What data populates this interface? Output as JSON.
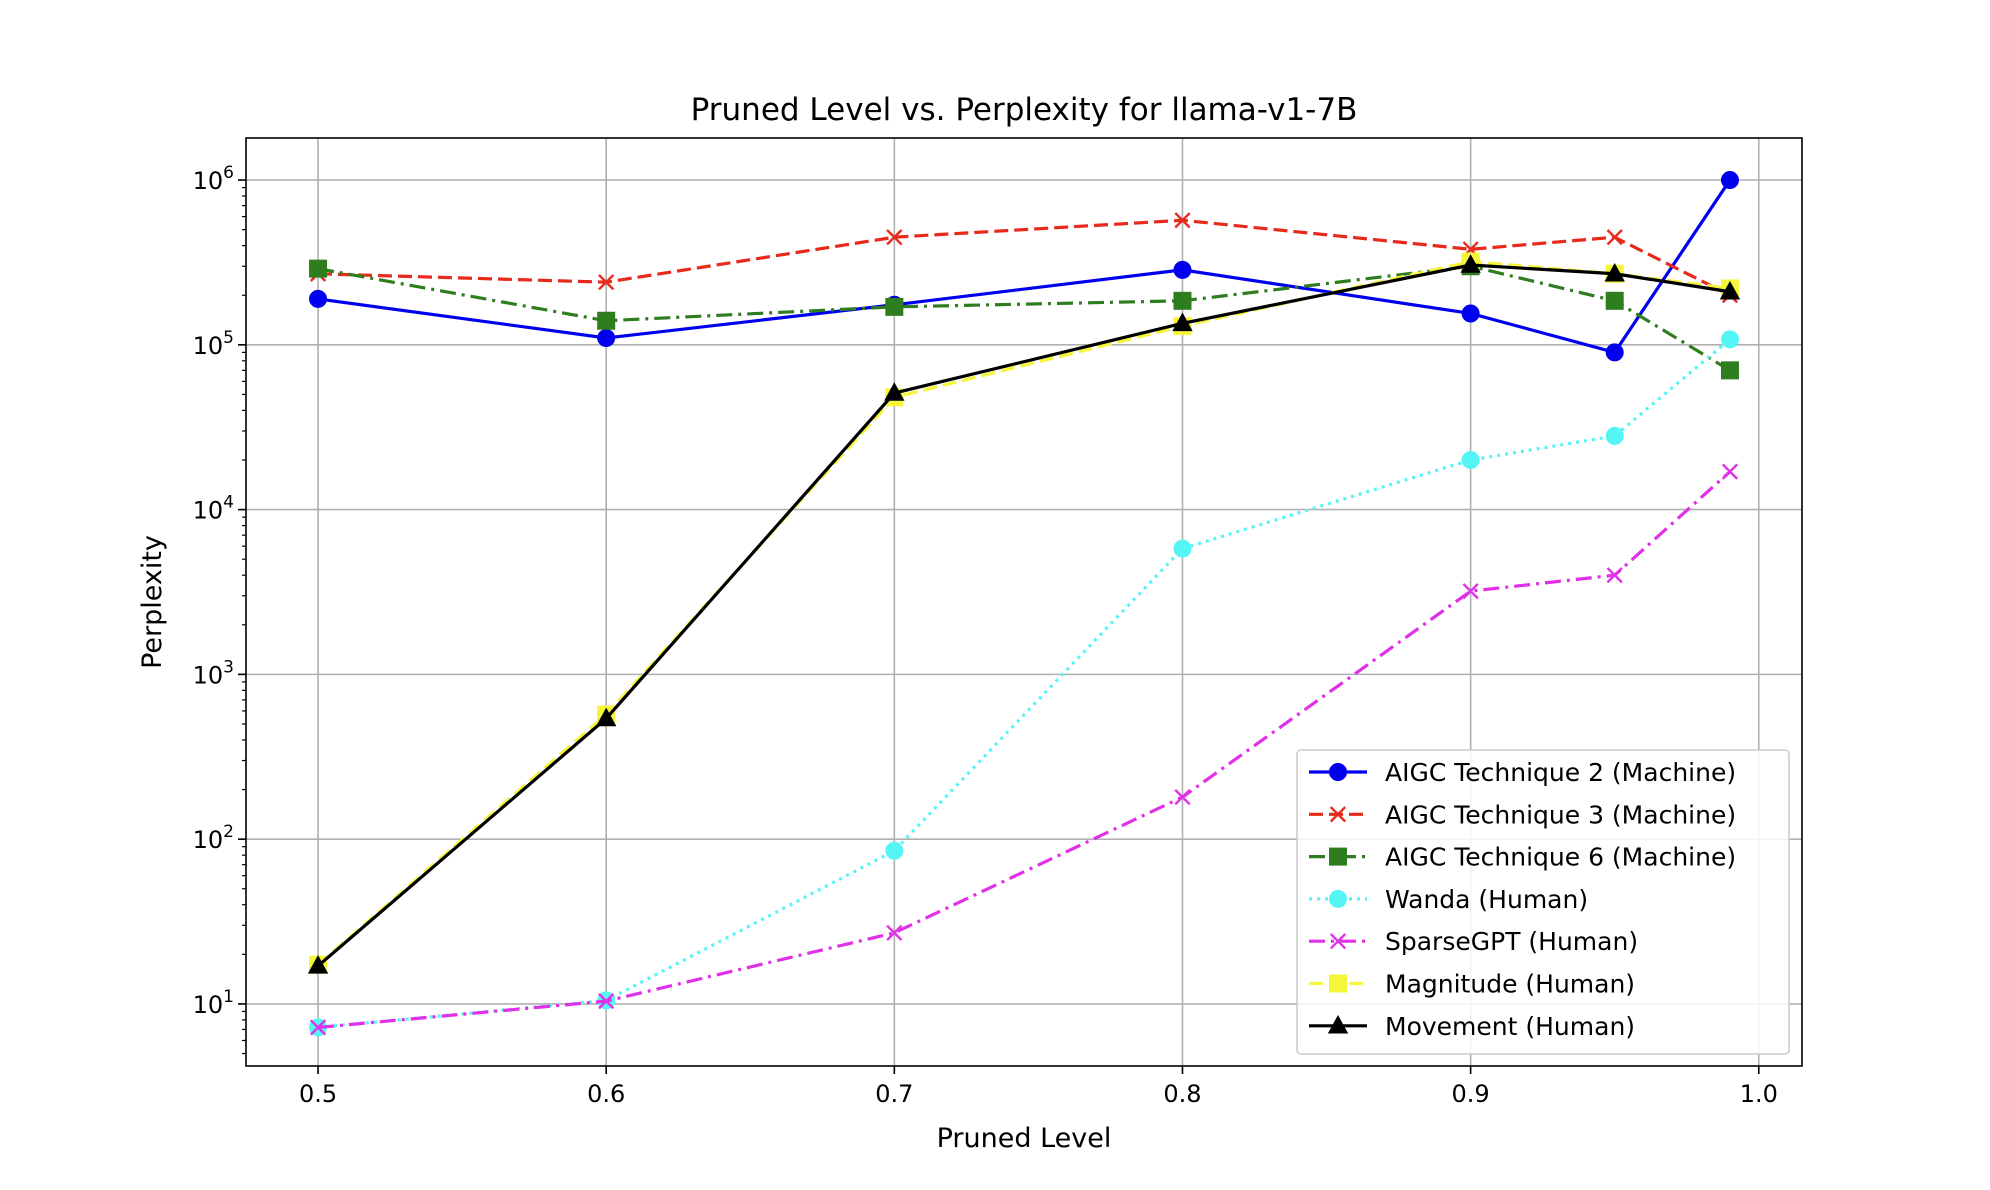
{
  "chart_data": {
    "type": "line",
    "title": "Pruned Level vs. Perplexity for llama-v1-7B",
    "xlabel": "Pruned Level",
    "ylabel": "Perplexity",
    "x": [
      0.5,
      0.6,
      0.7,
      0.8,
      0.9,
      0.95,
      0.99
    ],
    "xlim": [
      0.475,
      1.015
    ],
    "ylim": [
      4.2,
      1800000
    ],
    "y_scale": "log",
    "grid": true,
    "legend_position": "lower right",
    "x_ticks": [
      {
        "value": 0.5,
        "label": "0.5"
      },
      {
        "value": 0.6,
        "label": "0.6"
      },
      {
        "value": 0.7,
        "label": "0.7"
      },
      {
        "value": 0.8,
        "label": "0.8"
      },
      {
        "value": 0.9,
        "label": "0.9"
      },
      {
        "value": 1.0,
        "label": "1.0"
      }
    ],
    "y_ticks": [
      {
        "value": 10,
        "base": "10",
        "exp": "1"
      },
      {
        "value": 100,
        "base": "10",
        "exp": "2"
      },
      {
        "value": 1000,
        "base": "10",
        "exp": "3"
      },
      {
        "value": 10000,
        "base": "10",
        "exp": "4"
      },
      {
        "value": 100000,
        "base": "10",
        "exp": "5"
      },
      {
        "value": 1000000,
        "base": "10",
        "exp": "6"
      }
    ],
    "series": [
      {
        "name": "AIGC Technique 2 (Machine)",
        "color": "#0000ee",
        "dash": "solid",
        "marker": "circle",
        "values": [
          190000,
          110000,
          175000,
          285000,
          155000,
          90000,
          1000000
        ]
      },
      {
        "name": "AIGC Technique 3 (Machine)",
        "color": "#e8291c",
        "dash": "dashed",
        "marker": "x",
        "values": [
          270000,
          240000,
          450000,
          570000,
          380000,
          450000,
          200000
        ]
      },
      {
        "name": "AIGC Technique 6 (Machine)",
        "color": "#2e7d1e",
        "dash": "dashdot",
        "marker": "square",
        "values": [
          290000,
          140000,
          170000,
          185000,
          300000,
          185000,
          70000
        ]
      },
      {
        "name": "Wanda (Human)",
        "color": "#55f5f5",
        "dash": "dotted",
        "marker": "circle",
        "values": [
          7.2,
          10.5,
          85,
          5800,
          20000,
          28000,
          108000
        ]
      },
      {
        "name": "SparseGPT (Human)",
        "color": "#e030e8",
        "dash": "dashdot",
        "marker": "x",
        "values": [
          7.2,
          10.4,
          27,
          180,
          3200,
          4000,
          17000
        ]
      },
      {
        "name": "Magnitude (Human)",
        "color": "#f5f53a",
        "dash": "dashed",
        "marker": "square",
        "values": [
          17.3,
          570,
          48000,
          130000,
          320000,
          270000,
          220000
        ]
      },
      {
        "name": "Movement (Human)",
        "color": "#000000",
        "dash": "solid",
        "marker": "triangle",
        "values": [
          17,
          540,
          51000,
          135000,
          305000,
          270000,
          210000
        ]
      }
    ]
  }
}
